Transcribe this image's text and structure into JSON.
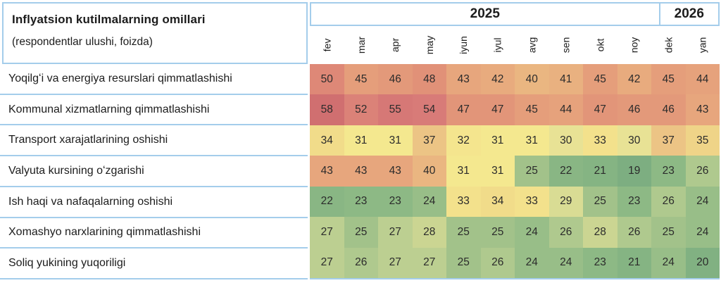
{
  "chart_data": {
    "type": "heatmap",
    "title": "Inflyatsion kutilmalarning omillari",
    "subtitle": "(respondentlar ulushi, foizda)",
    "x": [
      "fev",
      "mar",
      "apr",
      "may",
      "iyun",
      "iyul",
      "avg",
      "sen",
      "okt",
      "noy",
      "dek",
      "yan"
    ],
    "x_year_groups": [
      {
        "label": "2025",
        "span": 11
      },
      {
        "label": "2026",
        "span": 1
      }
    ],
    "series": [
      {
        "name": "Yoqilgʻi va energiya resurslari qimmatlashishi",
        "values": [
          50,
          45,
          46,
          48,
          43,
          42,
          40,
          41,
          45,
          42,
          45,
          44
        ]
      },
      {
        "name": "Kommunal xizmatlarning qimmatlashishi",
        "values": [
          58,
          52,
          55,
          54,
          47,
          47,
          45,
          44,
          47,
          46,
          46,
          43
        ]
      },
      {
        "name": "Transport xarajatlarining oshishi",
        "values": [
          34,
          31,
          31,
          37,
          32,
          31,
          31,
          30,
          33,
          30,
          37,
          35
        ]
      },
      {
        "name": "Valyuta kursining oʻzgarishi",
        "values": [
          43,
          43,
          43,
          40,
          31,
          31,
          25,
          22,
          21,
          19,
          23,
          26
        ]
      },
      {
        "name": "Ish haqi va nafaqalarning oshishi",
        "values": [
          22,
          23,
          23,
          24,
          33,
          34,
          33,
          29,
          25,
          23,
          26,
          24
        ]
      },
      {
        "name": "Xomashyo narxlarining qimmatlashishi",
        "values": [
          27,
          25,
          27,
          28,
          25,
          25,
          24,
          26,
          28,
          26,
          25,
          24
        ]
      },
      {
        "name": "Soliq yukining yuqoriligi",
        "values": [
          27,
          26,
          27,
          27,
          25,
          26,
          24,
          24,
          23,
          21,
          24,
          20
        ]
      }
    ],
    "value_range": [
      19,
      58
    ],
    "legend_position": "none",
    "grid": false,
    "color_scale": {
      "type": "diverging",
      "low_color": "#7dae81",
      "mid_color": "#f4e88f",
      "high_color": "#d06f70",
      "stops": [
        [
          19,
          "#7dae81"
        ],
        [
          23,
          "#8db985"
        ],
        [
          25,
          "#a2c28a"
        ],
        [
          27,
          "#bccf91"
        ],
        [
          30,
          "#e8e295"
        ],
        [
          31,
          "#f4e88f"
        ],
        [
          33,
          "#f3e18c"
        ],
        [
          34,
          "#f1dc8a"
        ],
        [
          37,
          "#ecc485"
        ],
        [
          40,
          "#eab681"
        ],
        [
          43,
          "#e7a67d"
        ],
        [
          47,
          "#e29579"
        ],
        [
          50,
          "#de8877"
        ],
        [
          54,
          "#d87b78"
        ],
        [
          58,
          "#d06f70"
        ]
      ]
    },
    "colors": {
      "border_blue": "#a4cdeb",
      "label_text": "#1c1c1c",
      "cell_text": "#2b2b2b"
    }
  }
}
